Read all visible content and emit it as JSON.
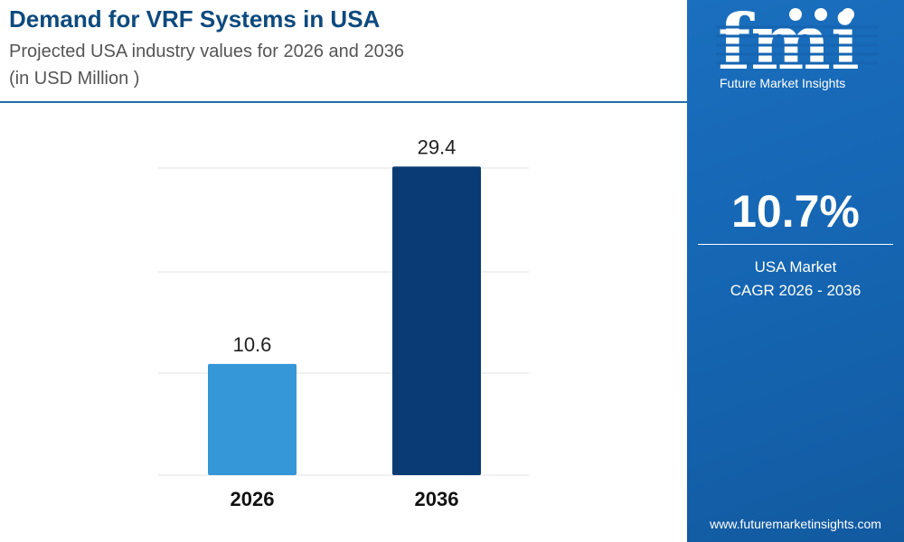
{
  "header": {
    "title": "Demand for VRF Systems in USA",
    "subtitle": "Projected USA industry values for 2026 and 2036",
    "unit_note": "(in USD Million )"
  },
  "colors": {
    "bar_2026": "#3596d8",
    "bar_2036": "#0b3b75",
    "panel": "#1565b2",
    "title": "#0d4a7e"
  },
  "chart_data": {
    "type": "bar",
    "categories": [
      "2026",
      "2036"
    ],
    "values": [
      10.6,
      29.4
    ],
    "data_labels": [
      "10.6",
      "29.4"
    ],
    "title": "Demand for VRF Systems in USA",
    "ylim": [
      0,
      31.5
    ],
    "grid": true
  },
  "sidebar": {
    "logo_letters": "fmi",
    "logo_caption": "Future Market Insights",
    "cagr_value": "10.7%",
    "cagr_label_line1": "USA Market",
    "cagr_label_line2": "CAGR 2026 - 2036",
    "website": "www.futuremarketinsights.com"
  }
}
